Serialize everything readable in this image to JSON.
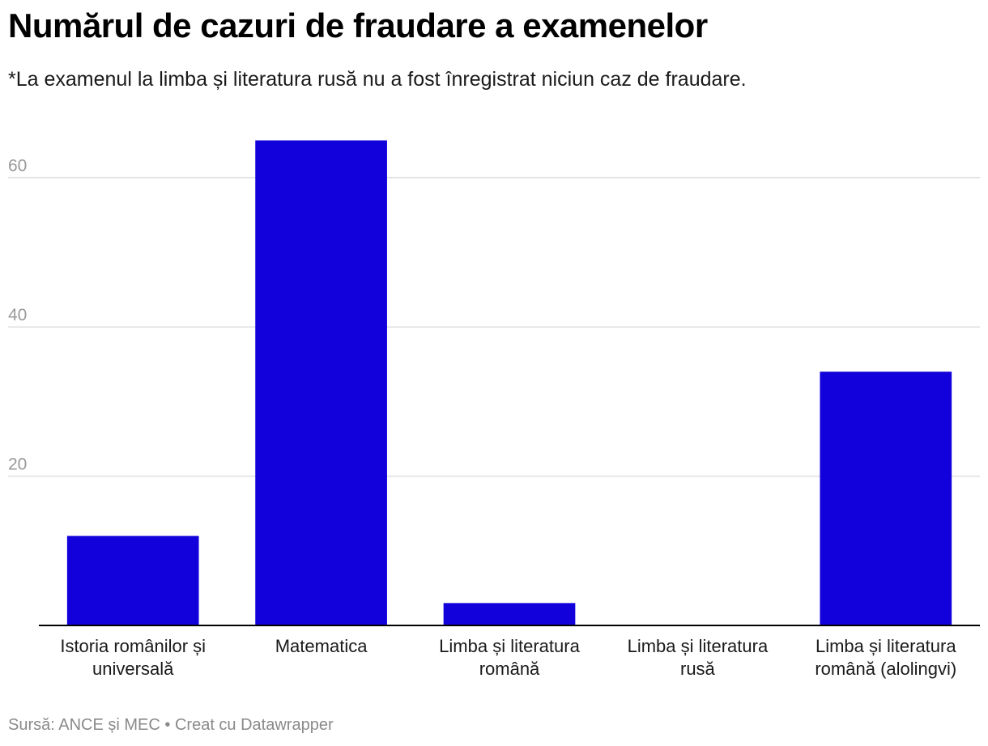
{
  "title": "Numărul de cazuri de fraudare a examenelor",
  "subtitle": "*La examenul la limba și literatura rusă nu a fost înregistrat niciun caz de fraudare.",
  "footer": {
    "source": "Sursă: ANCE și MEC",
    "separator": "•",
    "credit": "Creat cu Datawrapper"
  },
  "colors": {
    "bar": "#1201db",
    "grid": "#e0e0e0",
    "baseline": "#000000"
  },
  "chart_data": {
    "type": "bar",
    "title": "Numărul de cazuri de fraudare a examenelor",
    "subtitle": "*La examenul la limba și literatura rusă nu a fost înregistrat niciun caz de fraudare.",
    "categories": [
      [
        "Istoria românilor și",
        "universală"
      ],
      [
        "Matematica"
      ],
      [
        "Limba și literatura",
        "română"
      ],
      [
        "Limba și literatura",
        "rusă"
      ],
      [
        "Limba și literatura",
        "română (alolingvi)"
      ]
    ],
    "values": [
      12,
      65,
      3,
      0,
      34
    ],
    "yticks": [
      20,
      40,
      60
    ],
    "ylim": [
      0,
      70
    ],
    "grid": true,
    "legend": "none"
  }
}
